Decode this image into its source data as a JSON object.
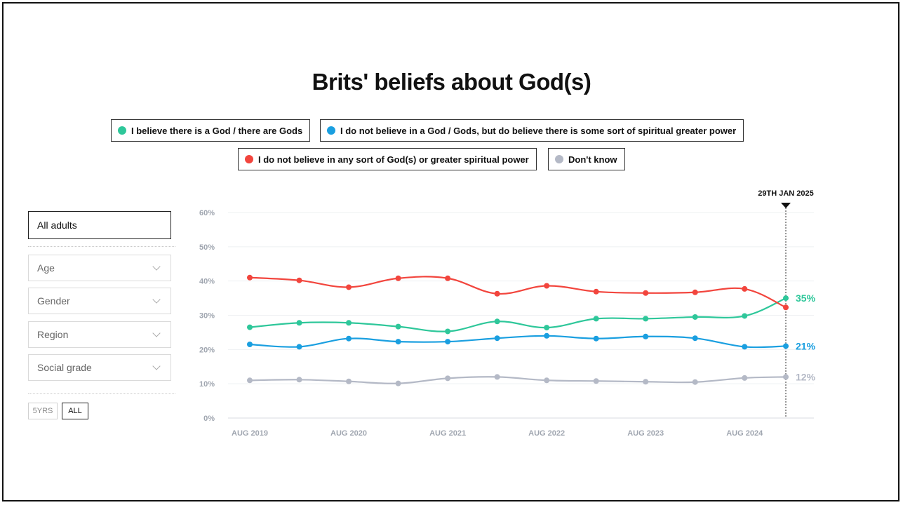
{
  "title": "Brits' beliefs about God(s)",
  "legend": [
    {
      "label": "I believe there is a God / there are Gods",
      "color": "#2ec79a"
    },
    {
      "label": "I do not believe in a God / Gods, but do believe there is some sort of spiritual greater power",
      "color": "#1a9fe0"
    },
    {
      "label": "I do not believe in any sort of God(s) or greater spiritual power",
      "color": "#f2453d"
    },
    {
      "label": "Don't know",
      "color": "#b4b9c6"
    }
  ],
  "filters": {
    "population": "All adults",
    "dropdowns": [
      "Age",
      "Gender",
      "Region",
      "Social grade"
    ],
    "range_buttons": [
      "5YRS",
      "ALL"
    ],
    "active_range": "ALL"
  },
  "chart_data": {
    "type": "line",
    "title": "Brits' beliefs about God(s)",
    "xlabel": "",
    "ylabel": "",
    "ylim": [
      0,
      60
    ],
    "yticks": [
      "0%",
      "10%",
      "20%",
      "30%",
      "40%",
      "50%",
      "60%"
    ],
    "xticks": [
      "AUG 2019",
      "AUG 2020",
      "AUG 2021",
      "AUG 2022",
      "AUG 2023",
      "AUG 2024"
    ],
    "marker_label": "29TH JAN 2025",
    "grid": true,
    "x": [
      "2019-08",
      "2020-02",
      "2020-08",
      "2021-02",
      "2021-08",
      "2022-02",
      "2022-08",
      "2023-02",
      "2023-08",
      "2024-02",
      "2024-08",
      "2025-01"
    ],
    "series": [
      {
        "name": "I believe there is a God / there are Gods",
        "color": "#2ec79a",
        "values": [
          26.5,
          27.8,
          27.8,
          26.7,
          25.3,
          28.2,
          26.4,
          29.0,
          29.0,
          29.5,
          29.8,
          35
        ],
        "end_label": "35%"
      },
      {
        "name": "I do not believe in a God / Gods, but do believe there is some sort of spiritual greater power",
        "color": "#1a9fe0",
        "values": [
          21.5,
          20.8,
          23.2,
          22.3,
          22.3,
          23.3,
          24.0,
          23.2,
          23.8,
          23.3,
          20.8,
          21
        ],
        "end_label": "21%"
      },
      {
        "name": "I do not believe in any sort of God(s) or greater spiritual power",
        "color": "#f2453d",
        "values": [
          41.0,
          40.2,
          38.2,
          40.8,
          40.8,
          36.3,
          38.6,
          36.9,
          36.5,
          36.7,
          37.7,
          32.3
        ],
        "end_label": ""
      },
      {
        "name": "Don't know",
        "color": "#b4b9c6",
        "values": [
          11.0,
          11.2,
          10.7,
          10.1,
          11.6,
          12.0,
          11.0,
          10.8,
          10.6,
          10.5,
          11.7,
          12
        ],
        "end_label": "12%"
      }
    ]
  }
}
